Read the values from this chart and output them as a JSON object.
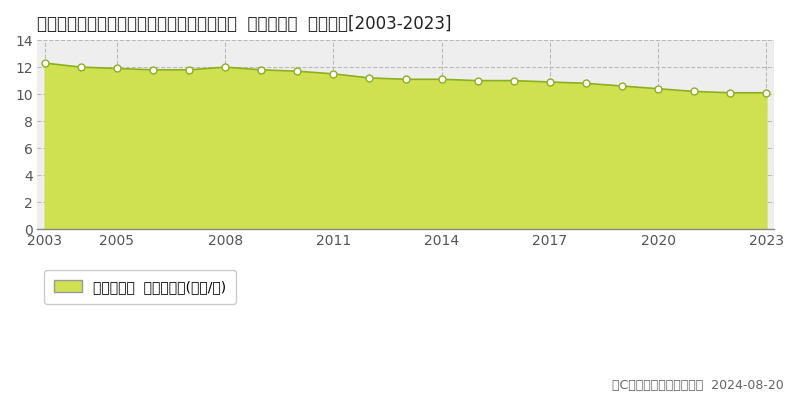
{
  "title": "愛知県海部郡飛島村大字新政成４丁目９８番  基準地価格  地価推移[2003-2023]",
  "years": [
    2003,
    2004,
    2005,
    2006,
    2007,
    2008,
    2009,
    2010,
    2011,
    2012,
    2013,
    2014,
    2015,
    2016,
    2017,
    2018,
    2019,
    2020,
    2021,
    2022,
    2023
  ],
  "values": [
    12.3,
    12.0,
    11.9,
    11.8,
    11.8,
    12.0,
    11.8,
    11.7,
    11.5,
    11.2,
    11.1,
    11.1,
    11.0,
    11.0,
    10.9,
    10.8,
    10.6,
    10.4,
    10.2,
    10.1,
    10.1
  ],
  "ylim": [
    0,
    14
  ],
  "yticks": [
    0,
    2,
    4,
    6,
    8,
    10,
    12,
    14
  ],
  "xticks": [
    2003,
    2005,
    2008,
    2011,
    2014,
    2017,
    2020,
    2023
  ],
  "line_color": "#8db020",
  "fill_color": "#cfe050",
  "fill_alpha": 1.0,
  "marker_facecolor": "white",
  "marker_edgecolor": "#8db020",
  "marker_size": 5,
  "plot_bg_color": "#eeeeee",
  "grid_color": "#bbbbbb",
  "legend_label": "基準地価格  平均坪単価(万円/坪)",
  "legend_marker_color": "#cfe050",
  "copyright_text": "（C）土地価格ドットコム  2024-08-20",
  "title_fontsize": 12,
  "tick_fontsize": 10,
  "legend_fontsize": 10,
  "copyright_fontsize": 9,
  "xlim_left": 2002.8,
  "xlim_right": 2023.2
}
